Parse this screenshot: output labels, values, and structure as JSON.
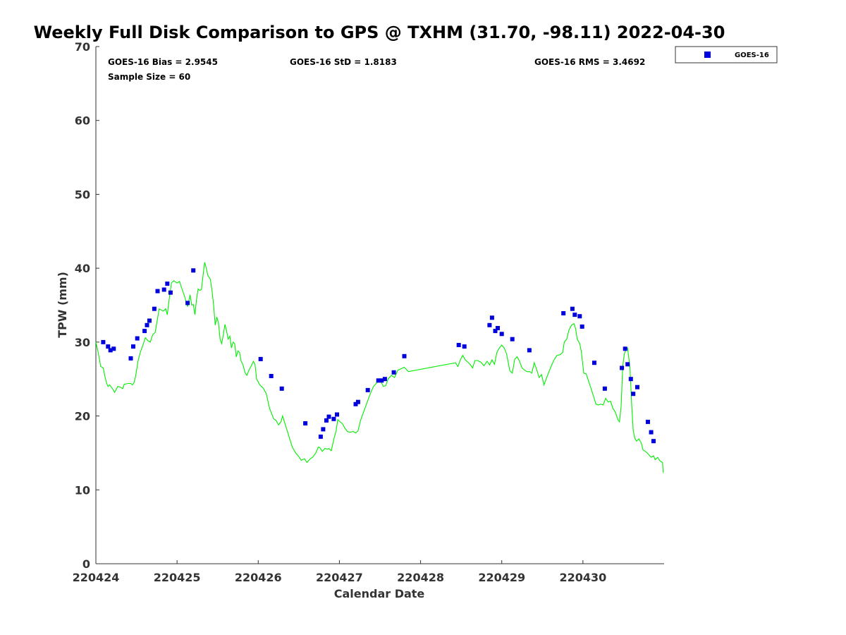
{
  "chart_data": {
    "type": "scatter",
    "title": "Weekly Full Disk Comparison to GPS @ TXHM (31.70, -98.11) 2022-04-30",
    "xlabel": "Calendar Date",
    "ylabel": "TPW (mm)",
    "xlim": [
      0,
      7
    ],
    "ylim": [
      0,
      70
    ],
    "x_ticks": [
      {
        "value": 0,
        "label": "220424"
      },
      {
        "value": 1,
        "label": "220425"
      },
      {
        "value": 2,
        "label": "220426"
      },
      {
        "value": 3,
        "label": "220427"
      },
      {
        "value": 4,
        "label": "220428"
      },
      {
        "value": 5,
        "label": "220429"
      },
      {
        "value": 6,
        "label": "220430"
      }
    ],
    "y_ticks": [
      0,
      10,
      20,
      30,
      40,
      50,
      60,
      70
    ],
    "stats": {
      "bias": "GOES-16 Bias = 2.9545",
      "std": "GOES-16 StD = 1.8183",
      "rms": "GOES-16 RMS = 3.4692",
      "sample": "Sample Size = 60"
    },
    "legend": {
      "label": "GOES-16",
      "position": "top-right"
    },
    "colors": {
      "goes": "#0000dd",
      "gps": "#00ee00"
    },
    "series": [
      {
        "name": "GOES-16",
        "kind": "scatter",
        "points": [
          [
            0.09,
            30.0
          ],
          [
            0.15,
            29.4
          ],
          [
            0.18,
            28.9
          ],
          [
            0.22,
            29.1
          ],
          [
            0.43,
            27.8
          ],
          [
            0.46,
            29.4
          ],
          [
            0.51,
            30.5
          ],
          [
            0.6,
            31.5
          ],
          [
            0.63,
            32.3
          ],
          [
            0.66,
            32.9
          ],
          [
            0.72,
            34.5
          ],
          [
            0.76,
            36.9
          ],
          [
            0.84,
            37.1
          ],
          [
            0.88,
            37.9
          ],
          [
            0.92,
            36.7
          ],
          [
            1.13,
            35.3
          ],
          [
            1.2,
            39.7
          ],
          [
            2.03,
            27.7
          ],
          [
            2.16,
            25.4
          ],
          [
            2.29,
            23.7
          ],
          [
            2.58,
            19.0
          ],
          [
            2.77,
            17.2
          ],
          [
            2.8,
            18.2
          ],
          [
            2.84,
            19.4
          ],
          [
            2.87,
            19.9
          ],
          [
            2.93,
            19.6
          ],
          [
            2.97,
            20.2
          ],
          [
            3.2,
            21.6
          ],
          [
            3.23,
            21.9
          ],
          [
            3.35,
            23.5
          ],
          [
            3.48,
            24.8
          ],
          [
            3.52,
            24.8
          ],
          [
            3.56,
            25.0
          ],
          [
            3.67,
            25.9
          ],
          [
            3.8,
            28.1
          ],
          [
            4.47,
            29.6
          ],
          [
            4.54,
            29.4
          ],
          [
            4.85,
            32.3
          ],
          [
            4.88,
            33.3
          ],
          [
            4.92,
            31.5
          ],
          [
            4.95,
            31.9
          ],
          [
            5.0,
            31.1
          ],
          [
            5.13,
            30.4
          ],
          [
            5.34,
            28.9
          ],
          [
            5.76,
            33.9
          ],
          [
            5.87,
            34.5
          ],
          [
            5.9,
            33.7
          ],
          [
            5.96,
            33.5
          ],
          [
            5.99,
            32.1
          ],
          [
            6.14,
            27.2
          ],
          [
            6.27,
            23.7
          ],
          [
            6.48,
            26.5
          ],
          [
            6.52,
            29.1
          ],
          [
            6.55,
            27.0
          ],
          [
            6.59,
            25.0
          ],
          [
            6.62,
            23.0
          ],
          [
            6.67,
            23.9
          ],
          [
            6.8,
            19.2
          ],
          [
            6.84,
            17.8
          ],
          [
            6.87,
            16.6
          ]
        ]
      },
      {
        "name": "GPS",
        "kind": "line",
        "points": [
          [
            0.0,
            30.0
          ],
          [
            0.03,
            28.5
          ],
          [
            0.06,
            26.7
          ],
          [
            0.09,
            26.5
          ],
          [
            0.11,
            25.4
          ],
          [
            0.13,
            24.5
          ],
          [
            0.15,
            24.0
          ],
          [
            0.17,
            24.2
          ],
          [
            0.19,
            23.9
          ],
          [
            0.21,
            23.6
          ],
          [
            0.23,
            23.2
          ],
          [
            0.25,
            23.6
          ],
          [
            0.27,
            24.0
          ],
          [
            0.3,
            23.9
          ],
          [
            0.33,
            23.7
          ],
          [
            0.35,
            24.3
          ],
          [
            0.4,
            24.4
          ],
          [
            0.43,
            24.4
          ],
          [
            0.45,
            24.2
          ],
          [
            0.47,
            24.5
          ],
          [
            0.49,
            25.4
          ],
          [
            0.52,
            27.5
          ],
          [
            0.55,
            28.7
          ],
          [
            0.58,
            29.6
          ],
          [
            0.61,
            30.6
          ],
          [
            0.64,
            30.2
          ],
          [
            0.67,
            30.0
          ],
          [
            0.7,
            31.0
          ],
          [
            0.73,
            31.3
          ],
          [
            0.76,
            33.2
          ],
          [
            0.78,
            34.5
          ],
          [
            0.81,
            34.3
          ],
          [
            0.83,
            34.2
          ],
          [
            0.86,
            34.5
          ],
          [
            0.88,
            33.7
          ],
          [
            0.9,
            35.5
          ],
          [
            0.93,
            38.0
          ],
          [
            0.96,
            38.3
          ],
          [
            1.0,
            38.0
          ],
          [
            1.03,
            38.2
          ],
          [
            1.06,
            37.2
          ],
          [
            1.09,
            36.3
          ],
          [
            1.13,
            34.8
          ],
          [
            1.16,
            36.4
          ],
          [
            1.18,
            35.0
          ],
          [
            1.2,
            35.1
          ],
          [
            1.22,
            33.7
          ],
          [
            1.24,
            35.8
          ],
          [
            1.26,
            37.2
          ],
          [
            1.28,
            37.0
          ],
          [
            1.3,
            37.1
          ],
          [
            1.32,
            39.0
          ],
          [
            1.34,
            40.8
          ],
          [
            1.36,
            40.0
          ],
          [
            1.38,
            39.0
          ],
          [
            1.41,
            38.5
          ],
          [
            1.43,
            37.0
          ],
          [
            1.45,
            35.0
          ],
          [
            1.47,
            32.3
          ],
          [
            1.49,
            33.4
          ],
          [
            1.51,
            32.6
          ],
          [
            1.53,
            30.4
          ],
          [
            1.55,
            29.8
          ],
          [
            1.57,
            31.0
          ],
          [
            1.59,
            32.4
          ],
          [
            1.61,
            31.5
          ],
          [
            1.63,
            30.4
          ],
          [
            1.65,
            30.8
          ],
          [
            1.67,
            29.2
          ],
          [
            1.69,
            30.0
          ],
          [
            1.71,
            29.8
          ],
          [
            1.73,
            28.0
          ],
          [
            1.75,
            28.8
          ],
          [
            1.77,
            28.6
          ],
          [
            1.79,
            27.4
          ],
          [
            1.81,
            27.0
          ],
          [
            1.84,
            25.8
          ],
          [
            1.86,
            25.5
          ],
          [
            1.89,
            26.3
          ],
          [
            1.92,
            26.9
          ],
          [
            1.94,
            27.4
          ],
          [
            1.96,
            27.0
          ],
          [
            1.98,
            25.0
          ],
          [
            2.02,
            24.2
          ],
          [
            2.06,
            23.8
          ],
          [
            2.1,
            23.0
          ],
          [
            2.14,
            21.0
          ],
          [
            2.17,
            20.2
          ],
          [
            2.19,
            19.6
          ],
          [
            2.22,
            19.4
          ],
          [
            2.25,
            18.8
          ],
          [
            2.28,
            19.2
          ],
          [
            2.3,
            20.0
          ],
          [
            2.34,
            18.6
          ],
          [
            2.38,
            17.2
          ],
          [
            2.42,
            15.8
          ],
          [
            2.46,
            15.0
          ],
          [
            2.5,
            14.5
          ],
          [
            2.53,
            14.0
          ],
          [
            2.57,
            14.2
          ],
          [
            2.6,
            13.7
          ],
          [
            2.64,
            14.2
          ],
          [
            2.67,
            14.4
          ],
          [
            2.71,
            15.0
          ],
          [
            2.74,
            15.8
          ],
          [
            2.76,
            15.7
          ],
          [
            2.79,
            15.2
          ],
          [
            2.82,
            15.6
          ],
          [
            2.85,
            15.5
          ],
          [
            2.87,
            15.6
          ],
          [
            2.9,
            15.3
          ],
          [
            2.93,
            16.8
          ],
          [
            2.96,
            18.0
          ],
          [
            2.98,
            19.5
          ],
          [
            3.01,
            19.2
          ],
          [
            3.04,
            18.9
          ],
          [
            3.07,
            18.3
          ],
          [
            3.1,
            17.9
          ],
          [
            3.13,
            17.8
          ],
          [
            3.17,
            17.9
          ],
          [
            3.2,
            17.7
          ],
          [
            3.23,
            18.0
          ],
          [
            3.26,
            19.4
          ],
          [
            3.3,
            20.6
          ],
          [
            3.34,
            21.8
          ],
          [
            3.38,
            23.0
          ],
          [
            3.42,
            24.0
          ],
          [
            3.46,
            24.5
          ],
          [
            3.5,
            25.0
          ],
          [
            3.54,
            24.0
          ],
          [
            3.57,
            24.1
          ],
          [
            3.6,
            25.0
          ],
          [
            3.64,
            25.5
          ],
          [
            3.68,
            25.2
          ],
          [
            3.72,
            26.2
          ],
          [
            3.76,
            26.4
          ],
          [
            3.8,
            26.6
          ],
          [
            3.85,
            26.0
          ],
          [
            4.43,
            27.2
          ],
          [
            4.46,
            26.7
          ],
          [
            4.49,
            27.6
          ],
          [
            4.52,
            28.2
          ],
          [
            4.55,
            27.6
          ],
          [
            4.58,
            27.3
          ],
          [
            4.61,
            27.0
          ],
          [
            4.64,
            26.5
          ],
          [
            4.67,
            27.5
          ],
          [
            4.7,
            27.5
          ],
          [
            4.74,
            27.3
          ],
          [
            4.78,
            26.8
          ],
          [
            4.82,
            27.4
          ],
          [
            4.85,
            26.9
          ],
          [
            4.88,
            27.6
          ],
          [
            4.91,
            27.0
          ],
          [
            4.94,
            28.6
          ],
          [
            4.97,
            29.2
          ],
          [
            5.0,
            29.6
          ],
          [
            5.03,
            29.2
          ],
          [
            5.06,
            28.4
          ],
          [
            5.1,
            26.1
          ],
          [
            5.13,
            25.8
          ],
          [
            5.16,
            27.7
          ],
          [
            5.19,
            28.0
          ],
          [
            5.22,
            27.4
          ],
          [
            5.25,
            26.5
          ],
          [
            5.28,
            26.2
          ],
          [
            5.31,
            26.0
          ],
          [
            5.34,
            26.0
          ],
          [
            5.37,
            25.8
          ],
          [
            5.4,
            27.2
          ],
          [
            5.43,
            26.3
          ],
          [
            5.46,
            25.2
          ],
          [
            5.49,
            25.6
          ],
          [
            5.52,
            24.2
          ],
          [
            5.55,
            25.1
          ],
          [
            5.6,
            26.5
          ],
          [
            5.64,
            27.5
          ],
          [
            5.68,
            28.2
          ],
          [
            5.72,
            28.3
          ],
          [
            5.75,
            28.6
          ],
          [
            5.77,
            30.0
          ],
          [
            5.8,
            30.4
          ],
          [
            5.83,
            31.7
          ],
          [
            5.86,
            32.3
          ],
          [
            5.89,
            32.5
          ],
          [
            5.91,
            31.8
          ],
          [
            5.93,
            30.4
          ],
          [
            5.96,
            29.8
          ],
          [
            5.98,
            28.7
          ],
          [
            6.01,
            25.8
          ],
          [
            6.04,
            25.7
          ],
          [
            6.07,
            24.7
          ],
          [
            6.1,
            23.7
          ],
          [
            6.13,
            22.7
          ],
          [
            6.16,
            21.6
          ],
          [
            6.19,
            21.5
          ],
          [
            6.22,
            21.6
          ],
          [
            6.25,
            21.5
          ],
          [
            6.28,
            22.4
          ],
          [
            6.31,
            21.9
          ],
          [
            6.34,
            22.0
          ],
          [
            6.37,
            21.0
          ],
          [
            6.4,
            20.5
          ],
          [
            6.43,
            19.5
          ],
          [
            6.45,
            19.2
          ],
          [
            6.47,
            21.3
          ],
          [
            6.49,
            26.7
          ],
          [
            6.51,
            28.4
          ],
          [
            6.53,
            29.0
          ],
          [
            6.55,
            29.2
          ],
          [
            6.58,
            26.5
          ],
          [
            6.6,
            21.7
          ],
          [
            6.62,
            18.0
          ],
          [
            6.64,
            17.0
          ],
          [
            6.66,
            16.6
          ],
          [
            6.69,
            16.9
          ],
          [
            6.72,
            16.3
          ],
          [
            6.74,
            15.4
          ],
          [
            6.77,
            15.2
          ],
          [
            6.8,
            14.9
          ],
          [
            6.84,
            14.4
          ],
          [
            6.87,
            14.6
          ],
          [
            6.89,
            14.1
          ],
          [
            6.92,
            14.4
          ],
          [
            6.95,
            13.9
          ],
          [
            6.98,
            13.7
          ],
          [
            6.99,
            12.3
          ]
        ]
      }
    ]
  }
}
